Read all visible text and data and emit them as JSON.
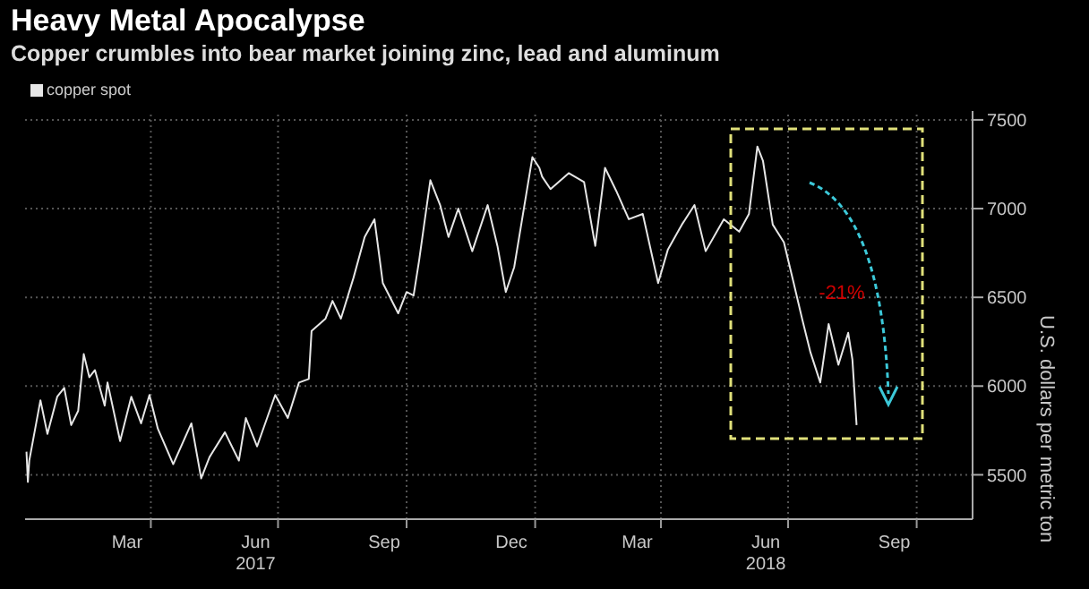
{
  "chart_data": {
    "type": "line",
    "title": "Heavy Metal Apocalypse",
    "subtitle": "Copper crumbles into bear market joining zinc, lead and aluminum",
    "ylabel": "U.S. dollars per metric ton",
    "annotations": [
      "-21%"
    ],
    "x": [
      "2017-01-02",
      "2017-01-03",
      "2017-01-04",
      "2017-01-12",
      "2017-01-17",
      "2017-01-24",
      "2017-01-29",
      "2017-02-03",
      "2017-02-08",
      "2017-02-12",
      "2017-02-16",
      "2017-02-20",
      "2017-02-27",
      "2017-03-01",
      "2017-03-10",
      "2017-03-18",
      "2017-03-25",
      "2017-03-31",
      "2017-04-06",
      "2017-04-17",
      "2017-04-30",
      "2017-05-07",
      "2017-05-13",
      "2017-05-24",
      "2017-06-03",
      "2017-06-08",
      "2017-06-16",
      "2017-06-29",
      "2017-07-08",
      "2017-07-16",
      "2017-07-23",
      "2017-07-25",
      "2017-08-04",
      "2017-08-09",
      "2017-08-15",
      "2017-08-24",
      "2017-09-01",
      "2017-09-08",
      "2017-09-14",
      "2017-09-25",
      "2017-10-01",
      "2017-10-06",
      "2017-10-10",
      "2017-10-18",
      "2017-10-25",
      "2017-10-31",
      "2017-11-07",
      "2017-11-17",
      "2017-11-28",
      "2017-12-05",
      "2017-12-11",
      "2017-12-17",
      "2017-12-30",
      "2018-01-04",
      "2018-01-06",
      "2018-01-12",
      "2018-01-25",
      "2018-02-05",
      "2018-02-13",
      "2018-02-20",
      "2018-02-28",
      "2018-03-09",
      "2018-03-19",
      "2018-03-30",
      "2018-04-06",
      "2018-04-16",
      "2018-04-25",
      "2018-05-03",
      "2018-05-16",
      "2018-05-27",
      "2018-06-03",
      "2018-06-09",
      "2018-06-13",
      "2018-06-20",
      "2018-06-28",
      "2018-07-05",
      "2018-07-11",
      "2018-07-17",
      "2018-07-24",
      "2018-07-30",
      "2018-08-06",
      "2018-08-13",
      "2018-08-16",
      "2018-08-19"
    ],
    "series": [
      {
        "name": "copper spot",
        "color": "#e6e6e6",
        "values": [
          5630,
          5460,
          5580,
          5920,
          5730,
          5940,
          5990,
          5780,
          5860,
          6180,
          6050,
          6090,
          5890,
          6020,
          5690,
          5940,
          5790,
          5950,
          5760,
          5560,
          5790,
          5480,
          5600,
          5740,
          5580,
          5820,
          5660,
          5950,
          5820,
          6020,
          6040,
          6310,
          6380,
          6480,
          6380,
          6610,
          6840,
          6940,
          6580,
          6410,
          6530,
          6510,
          6710,
          7160,
          7020,
          6840,
          7000,
          6760,
          7020,
          6790,
          6530,
          6670,
          7290,
          7230,
          7180,
          7110,
          7200,
          7150,
          6790,
          7230,
          7100,
          6940,
          6970,
          6580,
          6770,
          6910,
          7020,
          6760,
          6940,
          6870,
          6970,
          7350,
          7270,
          6910,
          6810,
          6580,
          6380,
          6190,
          6020,
          6350,
          6120,
          6300,
          6150,
          5780
        ]
      }
    ],
    "xlim": [
      "2017-01-01",
      "2018-11-10"
    ],
    "xticks": [
      {
        "value": "2017-03-15",
        "label": "Mar"
      },
      {
        "value": "2017-04-01",
        "label": null
      },
      {
        "value": "2017-06-15",
        "label": "Jun\n2017"
      },
      {
        "value": "2017-07-01",
        "label": null
      },
      {
        "value": "2017-09-15",
        "label": "Sep"
      },
      {
        "value": "2017-10-01",
        "label": null
      },
      {
        "value": "2017-12-15",
        "label": "Dec"
      },
      {
        "value": "2018-01-01",
        "label": null
      },
      {
        "value": "2018-03-15",
        "label": "Mar"
      },
      {
        "value": "2018-04-01",
        "label": null
      },
      {
        "value": "2018-06-15",
        "label": "Jun\n2018"
      },
      {
        "value": "2018-07-01",
        "label": null
      },
      {
        "value": "2018-09-15",
        "label": "Sep"
      },
      {
        "value": "2018-10-01",
        "label": null
      }
    ],
    "ylim": [
      5250,
      7550
    ],
    "yticks": [
      5500,
      6000,
      6500,
      7000,
      7500
    ],
    "grid": true,
    "legend": "top left"
  }
}
